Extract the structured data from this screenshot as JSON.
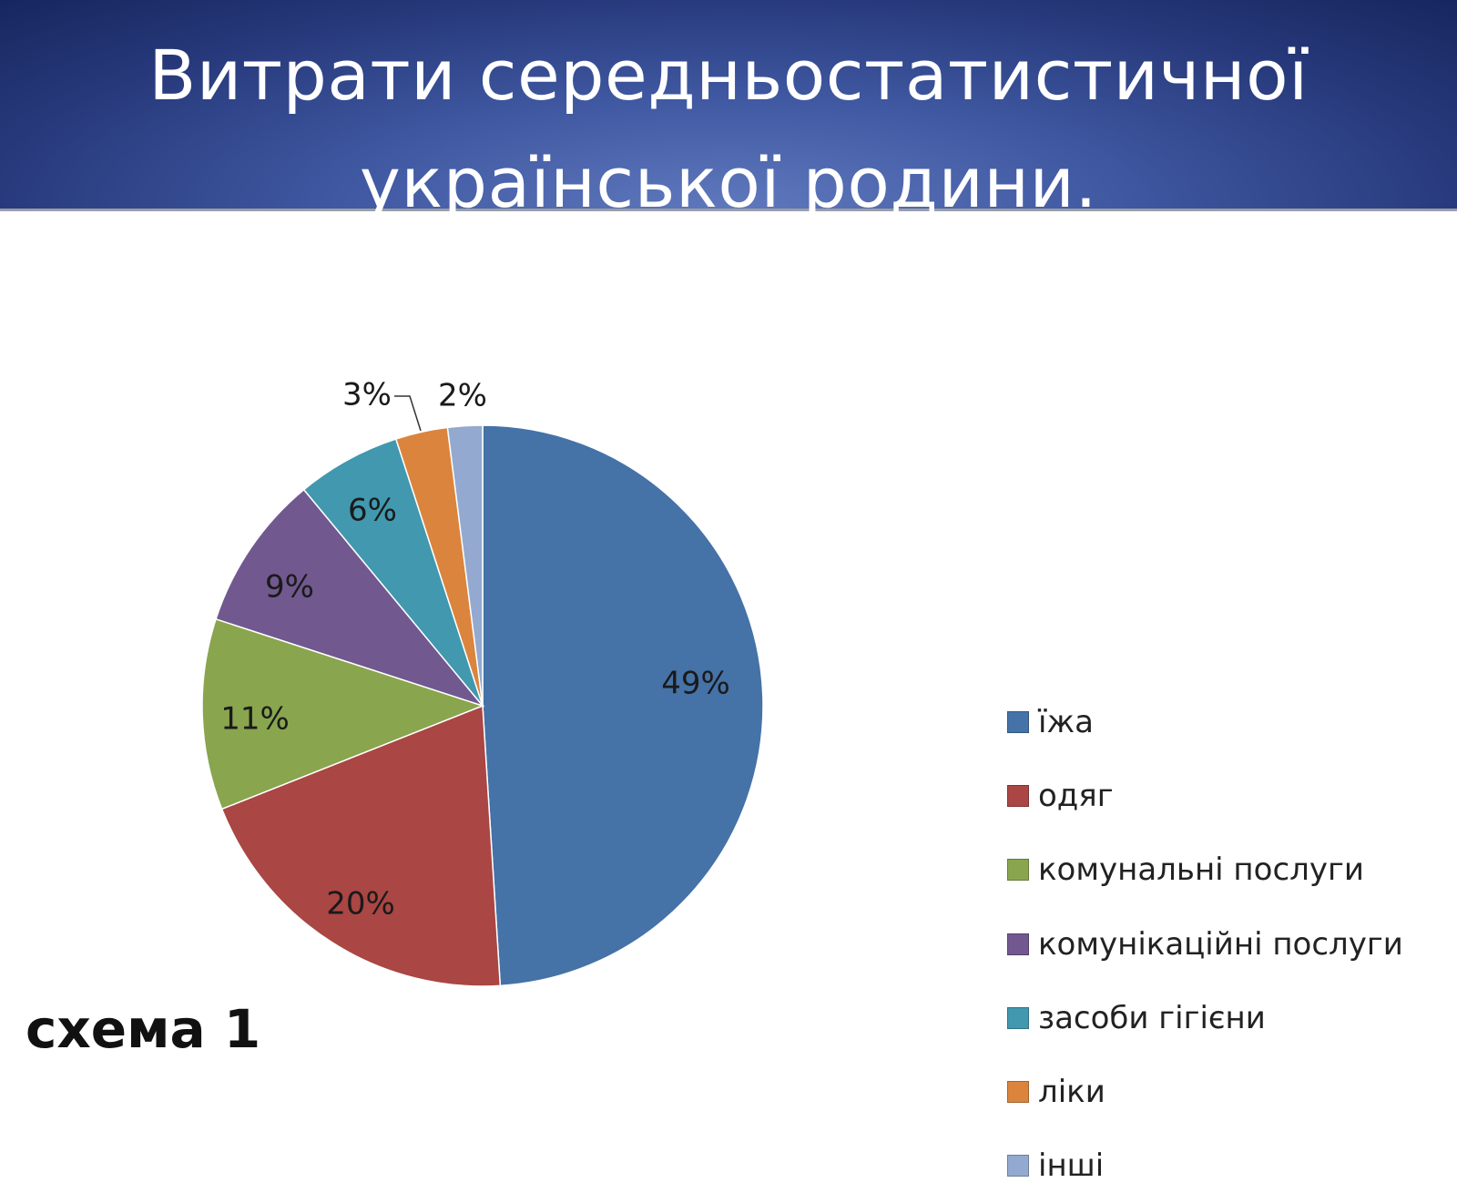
{
  "slide": {
    "title": "Витрати середньостатистичної української родини.",
    "caption": "схема 1"
  },
  "chart_data": {
    "type": "pie",
    "categories": [
      "їжа",
      "одяг",
      "комунальні послуги",
      "комунікаційні послуги",
      "засоби гігієни",
      "ліки",
      "інші"
    ],
    "values": [
      49,
      20,
      11,
      9,
      6,
      3,
      2
    ],
    "data_labels": [
      "49%",
      "20%",
      "11%",
      "9%",
      "6%",
      "3%",
      "2%"
    ],
    "colors": [
      "#4572a7",
      "#aa4643",
      "#89a54e",
      "#71588f",
      "#4198af",
      "#db843d",
      "#93a9cf"
    ],
    "legend": "right",
    "title": ""
  }
}
